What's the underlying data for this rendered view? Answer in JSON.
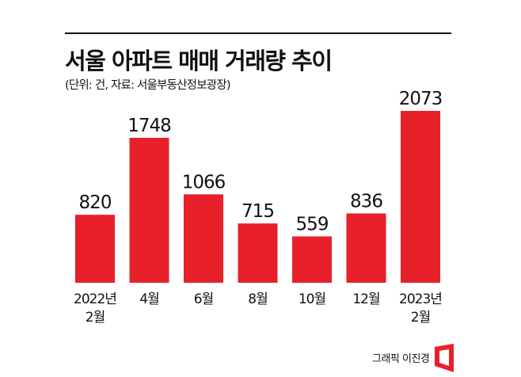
{
  "title": "서울 아파트 매매 거래량 추이",
  "subtitle": "(단위: 건, 자료: 서울부동산정보광장)",
  "credit": "그래픽 이진경",
  "colors": {
    "bar": "#e8202a",
    "text": "#111111"
  },
  "chart_data": {
    "type": "bar",
    "title": "서울 아파트 매매 거래량 추이",
    "unit": "건",
    "source": "서울부동산정보광장",
    "categories": [
      [
        "2022년",
        "2월"
      ],
      [
        "4월"
      ],
      [
        "6월"
      ],
      [
        "8월"
      ],
      [
        "10월"
      ],
      [
        "12월"
      ],
      [
        "2023년",
        "2월"
      ]
    ],
    "values": [
      820,
      1748,
      1066,
      715,
      559,
      836,
      2073
    ],
    "grid": false,
    "legend": "none"
  }
}
